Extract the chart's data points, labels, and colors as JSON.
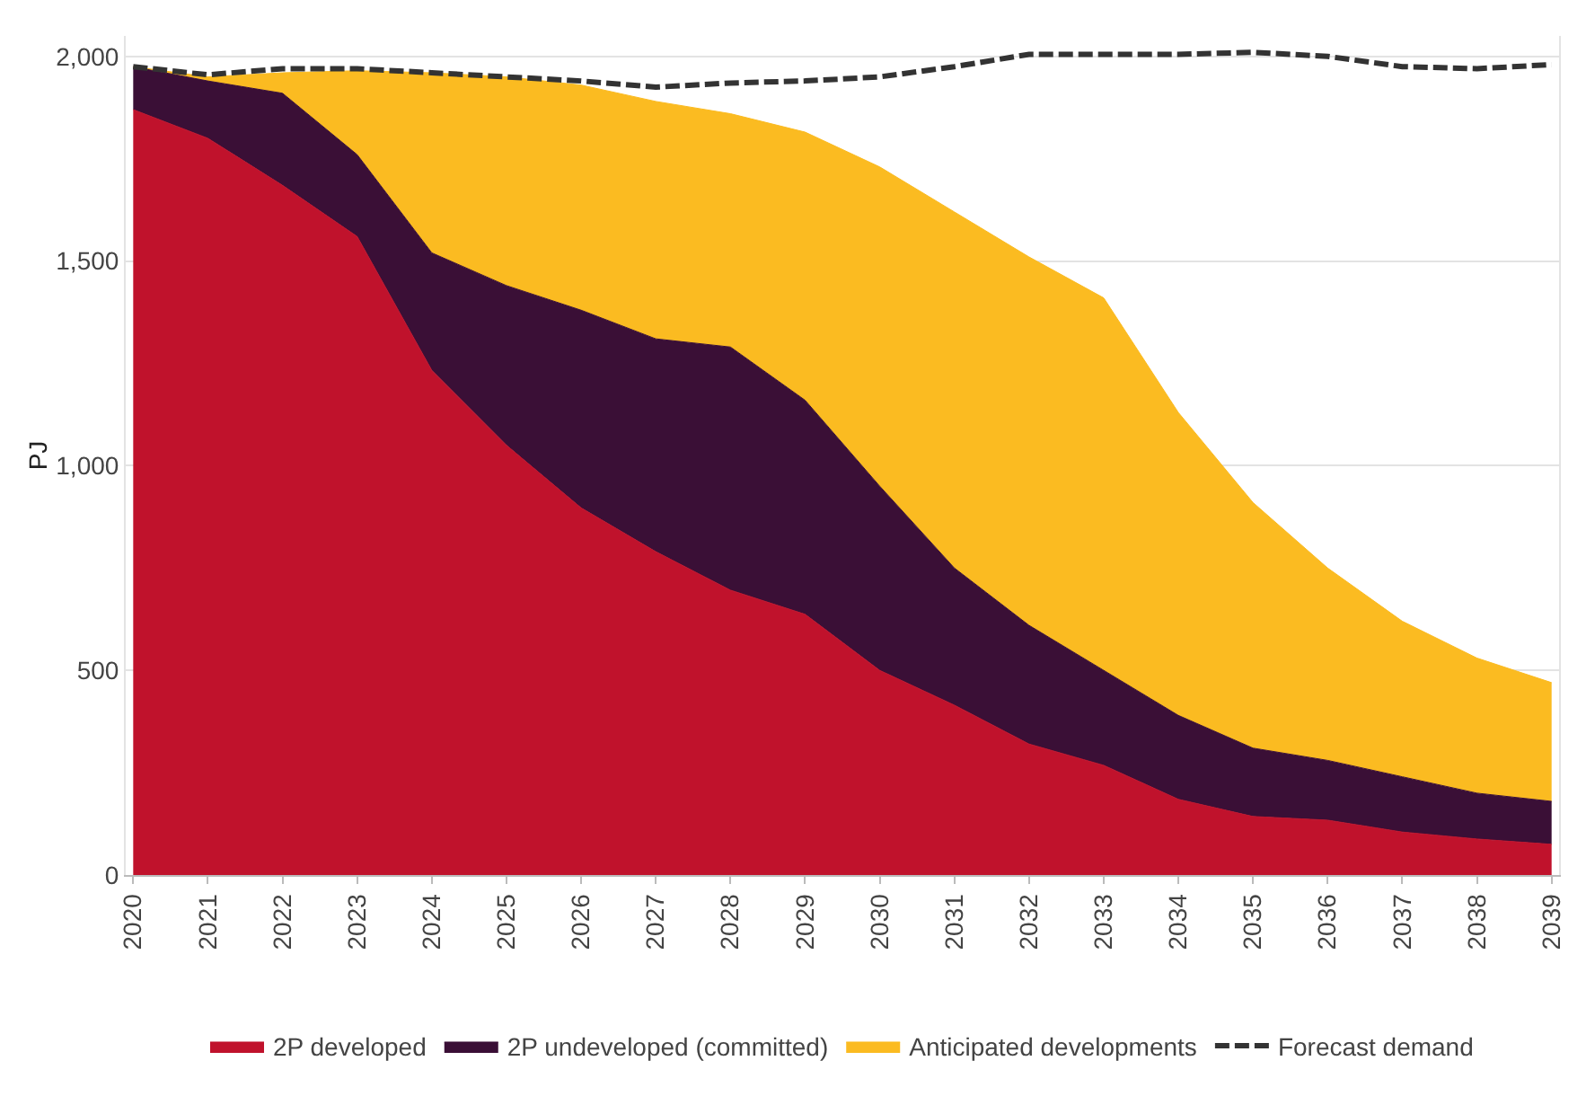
{
  "chart_data": {
    "type": "area",
    "stacked": true,
    "ylabel": "PJ",
    "categories": [
      "2020",
      "2021",
      "2022",
      "2023",
      "2024",
      "2025",
      "2026",
      "2027",
      "2028",
      "2029",
      "2030",
      "2031",
      "2032",
      "2033",
      "2034",
      "2035",
      "2036",
      "2037",
      "2038",
      "2039"
    ],
    "series": [
      {
        "name": "2P developed",
        "color": "#c0122c",
        "values": [
          1870,
          1800,
          1685,
          1560,
          1233,
          1050,
          897,
          790,
          696,
          637,
          500,
          415,
          320,
          268,
          185,
          143,
          134,
          105,
          88,
          75
        ]
      },
      {
        "name": "2P undeveloped (committed)",
        "color": "#3a0f36",
        "values": [
          105,
          140,
          225,
          200,
          287,
          390,
          483,
          520,
          594,
          523,
          450,
          335,
          290,
          232,
          205,
          167,
          146,
          135,
          112,
          105
        ]
      },
      {
        "name": "Anticipated developments",
        "color": "#fbbb21",
        "values": [
          0,
          10,
          50,
          205,
          440,
          510,
          550,
          580,
          570,
          655,
          780,
          870,
          900,
          910,
          740,
          600,
          470,
          380,
          330,
          290
        ]
      },
      {
        "name": "Forecast demand",
        "type": "line",
        "line_style": "dashed",
        "color": "#333333",
        "values": [
          1975,
          1955,
          1970,
          1970,
          1960,
          1950,
          1940,
          1925,
          1935,
          1940,
          1950,
          1975,
          2005,
          2005,
          2005,
          2010,
          2000,
          1975,
          1970,
          1980
        ]
      }
    ],
    "ylim": [
      0,
      2050
    ],
    "yticks": [
      0,
      {
        "value": 500,
        "label": "500"
      },
      {
        "value": 1000,
        "label": "1,000"
      },
      {
        "value": 1500,
        "label": "1,500"
      },
      {
        "value": 2000,
        "label": "2,000"
      }
    ],
    "grid": "y",
    "legend": "bottom"
  }
}
